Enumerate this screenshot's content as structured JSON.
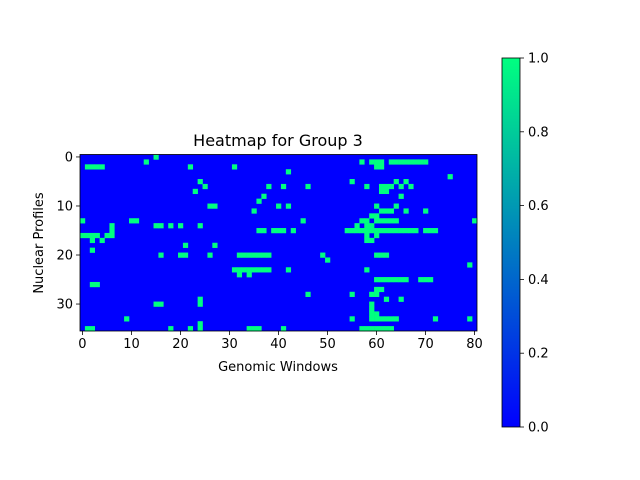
{
  "chart_data": {
    "type": "heatmap",
    "title": "Heatmap for Group 3",
    "xlabel": "Genomic Windows",
    "ylabel": "Nuclear Profiles",
    "n_cols": 81,
    "n_rows": 36,
    "x_ticks": [
      0,
      10,
      20,
      30,
      40,
      50,
      60,
      70,
      80
    ],
    "y_ticks": [
      0,
      10,
      20,
      30
    ],
    "colorbar": {
      "vmin": 0.0,
      "vmax": 1.0,
      "ticks": [
        "0.0",
        "0.2",
        "0.4",
        "0.6",
        "0.8",
        "1.0"
      ],
      "colormap": "winter",
      "low_color": "#0000ff",
      "high_color": "#00ff80"
    },
    "values_encoding": "binary 0/1; rows list the column indices equal to 1",
    "ones": [
      [
        15
      ],
      [
        13,
        57,
        59,
        60,
        61,
        63,
        64,
        65,
        66,
        67,
        68,
        69,
        70
      ],
      [
        1,
        2,
        3,
        4,
        22,
        31,
        60,
        61
      ],
      [
        42
      ],
      [
        75
      ],
      [
        24,
        55,
        64,
        66
      ],
      [
        25,
        38,
        41,
        46,
        58,
        61,
        62,
        63,
        65,
        67
      ],
      [
        23,
        61,
        62
      ],
      [
        37,
        65
      ],
      [
        36
      ],
      [
        26,
        27,
        40,
        42,
        60,
        64
      ],
      [
        35,
        61,
        62,
        63,
        66,
        70
      ],
      [
        59,
        60
      ],
      [
        0,
        10,
        11,
        45,
        57,
        58,
        60,
        61,
        62,
        63,
        64,
        80
      ],
      [
        6,
        15,
        16,
        18,
        20,
        24,
        56,
        58,
        59
      ],
      [
        6,
        36,
        37,
        39,
        40,
        41,
        43,
        54,
        55,
        56,
        57,
        58,
        59,
        60,
        61,
        62,
        63,
        64,
        65,
        66,
        67,
        68,
        70,
        71,
        72
      ],
      [
        0,
        1,
        2,
        3,
        5,
        6,
        58,
        60
      ],
      [
        2,
        4,
        58,
        59
      ],
      [
        21,
        27
      ],
      [
        2
      ],
      [
        16,
        20,
        21,
        26,
        32,
        33,
        34,
        35,
        36,
        37,
        38,
        49,
        60,
        61,
        62
      ],
      [
        50
      ],
      [
        79
      ],
      [
        31,
        32,
        33,
        34,
        35,
        36,
        37,
        38,
        42,
        58
      ],
      [
        32,
        34
      ],
      [
        60,
        61,
        62,
        63,
        64,
        65,
        66,
        69,
        70,
        71
      ],
      [
        2,
        3
      ],
      [
        60,
        61
      ],
      [
        46,
        55,
        59,
        60
      ],
      [
        24,
        62,
        65
      ],
      [
        15,
        16,
        24,
        59
      ],
      [
        59
      ],
      [
        59,
        60
      ],
      [
        9,
        55,
        59,
        60,
        61,
        62,
        63,
        64,
        72,
        79
      ],
      [
        24
      ],
      [
        1,
        2,
        18,
        22,
        24,
        34,
        35,
        36,
        41,
        57,
        58,
        59,
        60,
        61,
        62,
        63
      ]
    ]
  }
}
